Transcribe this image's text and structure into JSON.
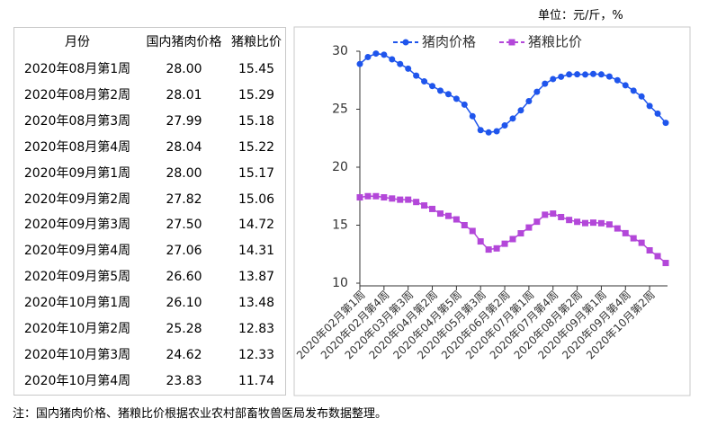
{
  "unit": "单位：元/斤，%",
  "note": "注：国内猪肉价格、猪粮比价根据农业农村部畜牧兽医局发布数据整理。",
  "table": {
    "header": [
      "月份",
      "国内猪肉价格",
      "猪粮比价"
    ],
    "rows": [
      [
        "2020年08月第1周",
        "28.00",
        "15.45"
      ],
      [
        "2020年08月第2周",
        "28.01",
        "15.29"
      ],
      [
        "2020年08月第3周",
        "27.99",
        "15.18"
      ],
      [
        "2020年08月第4周",
        "28.04",
        "15.22"
      ],
      [
        "2020年09月第1周",
        "28.00",
        "15.17"
      ],
      [
        "2020年09月第2周",
        "27.82",
        "15.06"
      ],
      [
        "2020年09月第3周",
        "27.50",
        "14.72"
      ],
      [
        "2020年09月第4周",
        "27.06",
        "14.31"
      ],
      [
        "2020年09月第5周",
        "26.60",
        "13.87"
      ],
      [
        "2020年10月第1周",
        "26.10",
        "13.48"
      ],
      [
        "2020年10月第2周",
        "25.28",
        "12.83"
      ],
      [
        "2020年10月第3周",
        "24.62",
        "12.33"
      ],
      [
        "2020年10月第4周",
        "23.83",
        "11.74"
      ]
    ]
  },
  "chart_data": {
    "type": "line",
    "categories": [
      "2020年02月第1周",
      null,
      null,
      "2020年02月第4周",
      null,
      null,
      "2020年03月第3周",
      null,
      null,
      "2020年04月第2周",
      null,
      null,
      "2020年04月第5周",
      null,
      null,
      "2020年05月第3周",
      null,
      null,
      "2020年06月第2周",
      null,
      null,
      "2020年07月第1周",
      null,
      null,
      "2020年07月第4周",
      null,
      null,
      "2020年08月第2周",
      null,
      null,
      "2020年09月第1周",
      null,
      null,
      "2020年09月第4周",
      null,
      null,
      "2020年10月第2周",
      null,
      null
    ],
    "series": [
      {
        "name": "猪肉价格",
        "color": "#1f55ec",
        "marker": "circle",
        "values": [
          28.9,
          29.5,
          29.8,
          29.7,
          29.3,
          28.9,
          28.5,
          27.9,
          27.4,
          27.0,
          26.6,
          26.3,
          25.9,
          25.4,
          24.4,
          23.2,
          23.0,
          23.1,
          23.6,
          24.2,
          24.9,
          25.7,
          26.5,
          27.2,
          27.6,
          27.8,
          28.0,
          28.01,
          27.99,
          28.04,
          28.0,
          27.82,
          27.5,
          27.06,
          26.6,
          26.1,
          25.28,
          24.62,
          23.83
        ]
      },
      {
        "name": "猪粮比价",
        "color": "#b347d9",
        "marker": "square",
        "values": [
          17.4,
          17.5,
          17.5,
          17.4,
          17.3,
          17.2,
          17.2,
          17.0,
          16.7,
          16.4,
          16.0,
          15.8,
          15.5,
          15.0,
          14.5,
          13.6,
          12.9,
          13.0,
          13.4,
          13.8,
          14.3,
          14.8,
          15.3,
          15.9,
          16.0,
          15.7,
          15.45,
          15.29,
          15.18,
          15.22,
          15.17,
          15.06,
          14.72,
          14.31,
          13.87,
          13.48,
          12.83,
          12.33,
          11.74
        ]
      }
    ],
    "ylim": [
      10,
      30
    ],
    "yticks": [
      10,
      15,
      20,
      25,
      30
    ],
    "grid": false,
    "legend": "top"
  }
}
